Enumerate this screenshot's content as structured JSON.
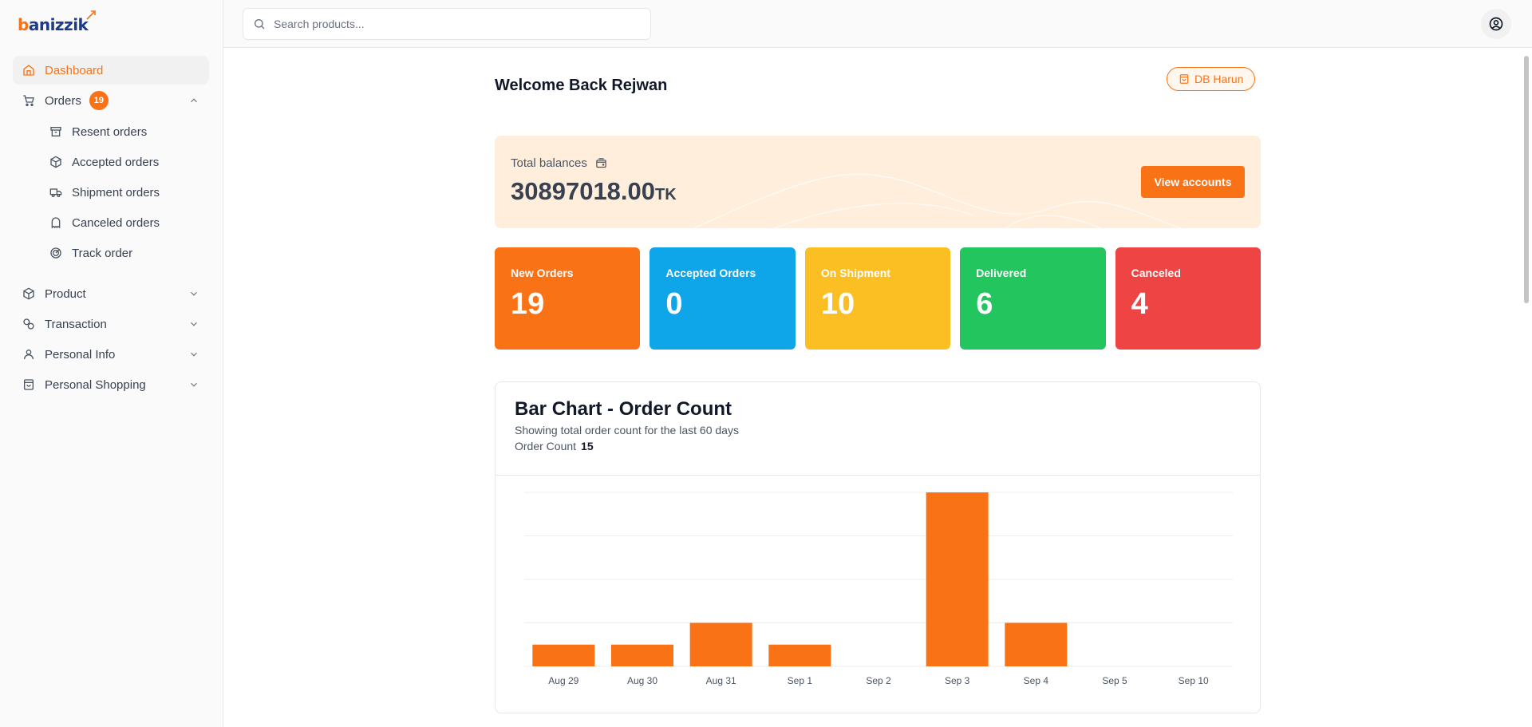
{
  "brand": {
    "name_b": "b",
    "name_rest": "anizzik"
  },
  "search": {
    "placeholder": "Search products..."
  },
  "sidebar": {
    "dashboard": "Dashboard",
    "orders": {
      "label": "Orders",
      "badge": "19"
    },
    "order_items": [
      {
        "label": "Resent orders",
        "icon": "archive-icon"
      },
      {
        "label": "Accepted orders",
        "icon": "package-icon"
      },
      {
        "label": "Shipment orders",
        "icon": "truck-icon"
      },
      {
        "label": "Canceled orders",
        "icon": "ghost-icon"
      },
      {
        "label": "Track order",
        "icon": "radar-icon"
      }
    ],
    "product": "Product",
    "transaction": "Transaction",
    "personal_info": "Personal Info",
    "personal_shopping": "Personal Shopping"
  },
  "welcome": "Welcome Back Rejwan",
  "db_badge": "DB Harun",
  "balance": {
    "label": "Total balances",
    "value": "30897018.00",
    "currency": "TK",
    "button": "View accounts"
  },
  "stats": [
    {
      "title": "New Orders",
      "value": "19",
      "color": "#f97316"
    },
    {
      "title": "Accepted Orders",
      "value": "0",
      "color": "#0ea5e9"
    },
    {
      "title": "On Shipment",
      "value": "10",
      "color": "#fbbf24"
    },
    {
      "title": "Delivered",
      "value": "6",
      "color": "#22c55e"
    },
    {
      "title": "Canceled",
      "value": "4",
      "color": "#ef4444"
    }
  ],
  "chart": {
    "title": "Bar Chart - Order Count",
    "subtitle": "Showing total order count for the last 60 days",
    "count_label": "Order Count",
    "count_value": "15"
  },
  "chart_data": {
    "type": "bar",
    "title": "Bar Chart - Order Count",
    "categories": [
      "Aug 29",
      "Aug 30",
      "Aug 31",
      "Sep 1",
      "Sep 2",
      "Sep 3",
      "Sep 4",
      "Sep 5",
      "Sep 10"
    ],
    "values": [
      1,
      1,
      2,
      1,
      0,
      8,
      2,
      0,
      0
    ],
    "ylim": [
      0,
      8
    ],
    "grid": true,
    "bar_color": "#f97316"
  }
}
